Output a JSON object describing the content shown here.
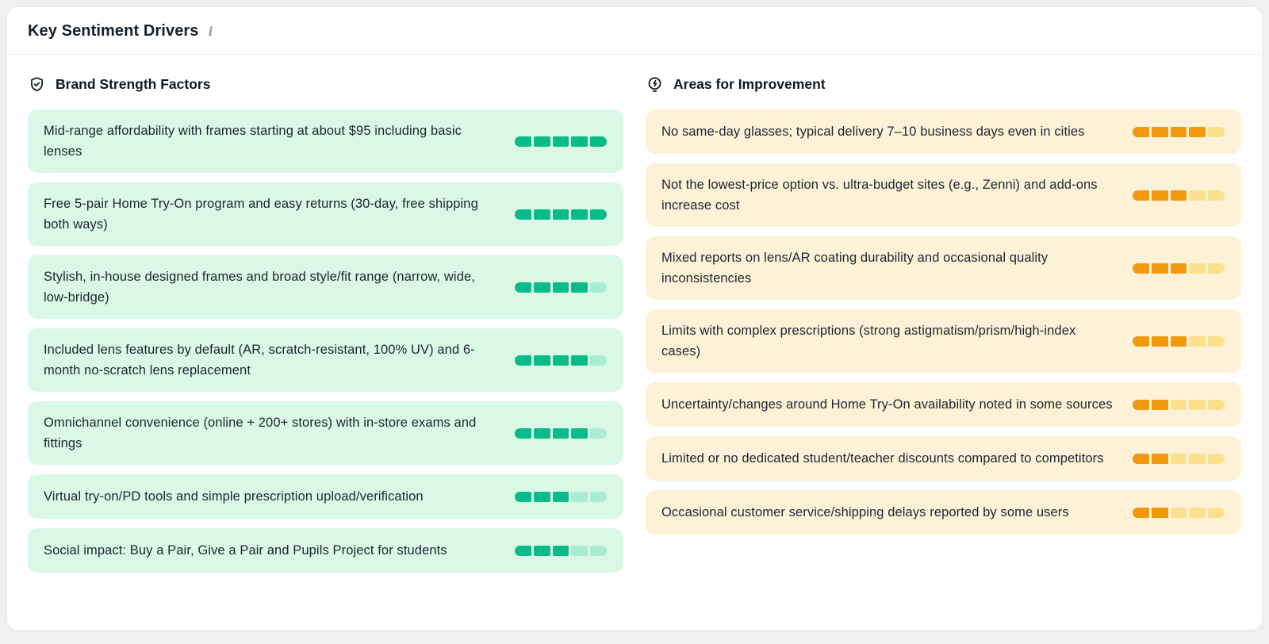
{
  "panel": {
    "title": "Key Sentiment Drivers",
    "info_icon": "i"
  },
  "columns": [
    {
      "id": "strengths",
      "header": "Brand Strength Factors",
      "icon": "shield-check-icon",
      "items": [
        {
          "text": "Mid-range affordability with frames starting at about $95 including basic lenses",
          "score": 5,
          "max": 5
        },
        {
          "text": "Free 5-pair Home Try-On program and easy returns (30-day, free shipping both ways)",
          "score": 5,
          "max": 5
        },
        {
          "text": "Stylish, in-house designed frames and broad style/fit range (narrow, wide, low-bridge)",
          "score": 4,
          "max": 5
        },
        {
          "text": "Included lens features by default (AR, scratch-resistant, 100% UV) and 6-month no-scratch lens replacement",
          "score": 4,
          "max": 5
        },
        {
          "text": "Omnichannel convenience (online + 200+ stores) with in-store exams and fittings",
          "score": 4,
          "max": 5
        },
        {
          "text": "Virtual try-on/PD tools and simple prescription upload/verification",
          "score": 3,
          "max": 5
        },
        {
          "text": "Social impact: Buy a Pair, Give a Pair and Pupils Project for students",
          "score": 3,
          "max": 5
        }
      ]
    },
    {
      "id": "improvements",
      "header": "Areas for Improvement",
      "icon": "lightbulb-icon",
      "items": [
        {
          "text": "No same-day glasses; typical delivery 7–10 business days even in cities",
          "score": 4,
          "max": 5
        },
        {
          "text": "Not the lowest-price option vs. ultra-budget sites (e.g., Zenni) and add-ons increase cost",
          "score": 3,
          "max": 5
        },
        {
          "text": "Mixed reports on lens/AR coating durability and occasional quality inconsistencies",
          "score": 3,
          "max": 5
        },
        {
          "text": "Limits with complex prescriptions (strong astigmatism/prism/high-index cases)",
          "score": 3,
          "max": 5
        },
        {
          "text": "Uncertainty/changes around Home Try-On availability noted in some sources",
          "score": 2,
          "max": 5
        },
        {
          "text": "Limited or no dedicated student/teacher discounts compared to competitors",
          "score": 2,
          "max": 5
        },
        {
          "text": "Occasional customer service/shipping delays reported by some users",
          "score": 2,
          "max": 5
        }
      ]
    }
  ],
  "colors": {
    "page_bg": "#eef0f2",
    "panel_bg": "#ffffff",
    "divider": "#eceef0",
    "title": "#16202b",
    "text": "#1e2530",
    "info": "#9aa3ad",
    "green_card_bg": "#d9f9e6",
    "green_fill": "#0abb8a",
    "green_empty": "#a8edd1",
    "amber_card_bg": "#fdf2d8",
    "amber_fill": "#f0990c",
    "amber_empty": "#fbe18d"
  }
}
